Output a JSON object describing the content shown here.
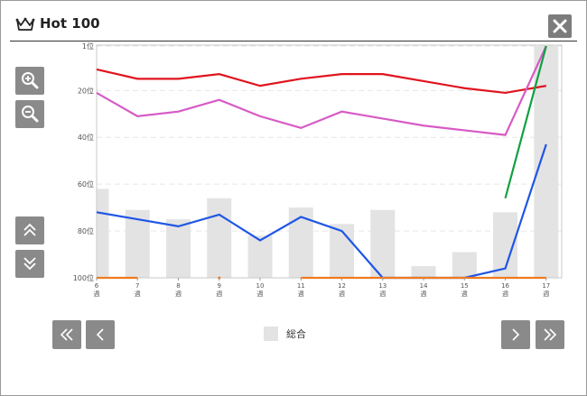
{
  "window": {
    "title": "Hot 100"
  },
  "chart_data": {
    "type": "line",
    "categories": [
      "6週",
      "7週",
      "8週",
      "9週",
      "10週",
      "11週",
      "12週",
      "13週",
      "14週",
      "15週",
      "16週",
      "17週"
    ],
    "x_tick_numbers": [
      "6",
      "7",
      "8",
      "9",
      "10",
      "11",
      "12",
      "13",
      "14",
      "15",
      "16",
      "17"
    ],
    "x_tick_unit": "週",
    "y_tick_labels": [
      "1位",
      "20位",
      "40位",
      "60位",
      "80位",
      "100位"
    ],
    "y_tick_values": [
      1,
      20,
      40,
      60,
      80,
      100
    ],
    "ylim": [
      1,
      100
    ],
    "y_inverted": true,
    "grid": true,
    "bars": {
      "name": "総合",
      "color": "#e3e3e3",
      "values": [
        62,
        71,
        75,
        66,
        82,
        70,
        77,
        71,
        95,
        89,
        72,
        1
      ]
    },
    "series": [
      {
        "color": "#e0141e",
        "values": [
          11,
          15,
          15,
          13,
          18,
          15,
          13,
          13,
          16,
          19,
          21,
          18
        ]
      },
      {
        "color": "#d75bc6",
        "values": [
          21,
          31,
          29,
          24,
          31,
          36,
          29,
          32,
          35,
          37,
          39,
          1
        ]
      },
      {
        "color": "#1f56e6",
        "values": [
          72,
          75,
          78,
          73,
          84,
          74,
          80,
          100,
          101,
          101,
          96,
          43
        ]
      },
      {
        "color": "#10a040",
        "values": [
          null,
          null,
          null,
          null,
          null,
          null,
          null,
          null,
          null,
          null,
          66,
          1
        ]
      },
      {
        "color": "#f07a1e",
        "values": [
          101,
          101,
          null,
          101,
          null,
          101,
          101,
          101,
          101,
          101,
          101,
          101
        ]
      }
    ]
  },
  "legend": {
    "label": "総合"
  },
  "icons": {
    "crown": "crown-icon",
    "close": "close-icon",
    "zoom_in": "zoom-in-icon",
    "zoom_out": "zoom-out-icon",
    "scroll_up": "double-chevron-up-icon",
    "scroll_down": "double-chevron-down-icon",
    "first": "double-chevron-left-icon",
    "prev": "chevron-left-icon",
    "next": "chevron-right-icon",
    "last": "double-chevron-right-icon"
  }
}
